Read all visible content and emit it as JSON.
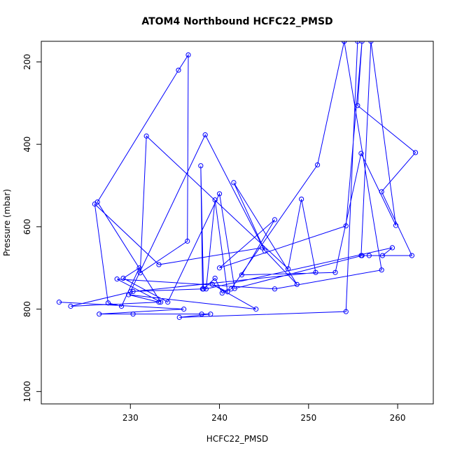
{
  "chart_data": {
    "type": "line",
    "title": "ATOM4 Northbound HCFC22_PMSD",
    "xlabel": "HCFC22_PMSD",
    "ylabel": "Pressure (mbar)",
    "xlim": [
      220,
      264
    ],
    "ylim": [
      1030,
      150
    ],
    "y_reversed": true,
    "x_ticks": [
      230,
      240,
      250,
      260
    ],
    "y_ticks": [
      200,
      400,
      600,
      800,
      1000
    ],
    "grid": false,
    "legend": "none",
    "series_color": "#0000ff",
    "marker": "open-circle",
    "series": [
      {
        "points": [
          [
            222,
            783
          ],
          [
            236,
            800
          ],
          [
            226.5,
            812
          ],
          [
            238,
            812
          ],
          [
            230.3,
            812
          ],
          [
            239,
            812
          ],
          [
            235.5,
            820
          ],
          [
            254.2,
            806
          ],
          [
            255.5,
            150
          ],
          [
            254,
            150
          ],
          [
            258.2,
            705
          ],
          [
            246.2,
            751
          ],
          [
            228.5,
            727
          ],
          [
            233.4,
            783
          ],
          [
            226.3,
            540
          ],
          [
            235.4,
            220
          ],
          [
            236.5,
            183
          ],
          [
            236.4,
            635
          ],
          [
            231.1,
            712
          ],
          [
            231.8,
            380
          ],
          [
            247.7,
            702
          ],
          [
            249.2,
            533
          ],
          [
            250.8,
            711
          ],
          [
            230,
            758
          ],
          [
            238.4,
            377
          ],
          [
            245.1,
            659
          ],
          [
            241.6,
            493
          ],
          [
            248.7,
            740
          ],
          [
            244.8,
            651
          ],
          [
            233.2,
            692
          ],
          [
            226,
            545
          ],
          [
            227.5,
            785
          ],
          [
            229,
            793
          ],
          [
            231,
            700
          ],
          [
            229.2,
            725
          ],
          [
            234.2,
            783
          ],
          [
            240,
            520
          ],
          [
            241.7,
            750
          ],
          [
            256,
            670
          ],
          [
            261.6,
            670
          ],
          [
            258.2,
            515
          ],
          [
            262,
            420
          ],
          [
            255.5,
            306
          ],
          [
            256,
            150
          ],
          [
            254.2,
            598
          ],
          [
            240,
            700
          ],
          [
            246.2,
            583
          ],
          [
            242.5,
            717
          ],
          [
            253,
            711
          ],
          [
            255.9,
            422
          ],
          [
            259.8,
            597
          ],
          [
            257,
            150
          ],
          [
            255.9,
            670
          ],
          [
            256.8,
            670
          ],
          [
            258.3,
            670
          ],
          [
            259.4,
            651
          ],
          [
            238.5,
            751
          ],
          [
            239.5,
            535
          ],
          [
            240.9,
            758
          ],
          [
            239.2,
            740
          ],
          [
            244.1,
            800
          ],
          [
            229.8,
            765
          ],
          [
            233.2,
            783
          ],
          [
            223.3,
            793
          ],
          [
            230.3,
            757
          ],
          [
            238.1,
            751
          ],
          [
            237.9,
            452
          ],
          [
            238.2,
            751
          ],
          [
            239.5,
            725
          ],
          [
            240.3,
            761
          ],
          [
            241.3,
            751
          ],
          [
            251,
            450
          ],
          [
            254,
            150
          ]
        ]
      }
    ]
  }
}
